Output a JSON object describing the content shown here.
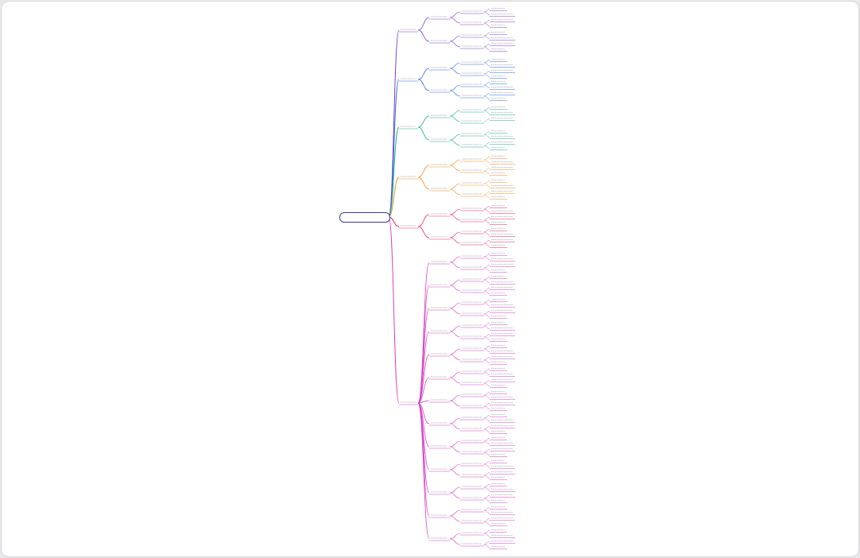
{
  "root": {
    "label": "",
    "color": "#3a3a9a"
  },
  "branches": [
    {
      "label": "",
      "color": "#7a3fd0",
      "level2": [
        {
          "label": "",
          "level3": [
            {
              "label": "",
              "leaves": [
                "",
                ""
              ]
            },
            {
              "label": "",
              "leaves": [
                "",
                ""
              ]
            }
          ]
        },
        {
          "label": "",
          "level3": [
            {
              "label": "",
              "leaves": [
                "",
                ""
              ]
            },
            {
              "label": "",
              "leaves": [
                "",
                ""
              ]
            }
          ]
        }
      ]
    },
    {
      "label": "",
      "color": "#2a6cd6",
      "level2": [
        {
          "label": "",
          "level3": [
            {
              "label": "",
              "leaves": [
                "",
                ""
              ]
            },
            {
              "label": "",
              "leaves": [
                "",
                ""
              ]
            }
          ]
        },
        {
          "label": "",
          "level3": [
            {
              "label": "",
              "leaves": [
                "",
                ""
              ]
            },
            {
              "label": "",
              "leaves": [
                "",
                ""
              ]
            }
          ]
        }
      ]
    },
    {
      "label": "",
      "color": "#1aa88a",
      "level2": [
        {
          "label": "",
          "level3": [
            {
              "label": "",
              "leaves": [
                "",
                ""
              ]
            },
            {
              "label": "",
              "leaves": [
                ""
              ]
            }
          ]
        },
        {
          "label": "",
          "level3": [
            {
              "label": "",
              "leaves": [
                "",
                ""
              ]
            },
            {
              "label": "",
              "leaves": [
                "",
                ""
              ]
            }
          ]
        }
      ]
    },
    {
      "label": "",
      "color": "#f08a1c",
      "level2": [
        {
          "label": "",
          "level3": [
            {
              "label": "",
              "leaves": [
                "",
                ""
              ]
            },
            {
              "label": "",
              "leaves": [
                "",
                ""
              ]
            }
          ]
        },
        {
          "label": "",
          "level3": [
            {
              "label": "",
              "leaves": [
                "",
                ""
              ]
            },
            {
              "label": "",
              "leaves": [
                "",
                ""
              ]
            }
          ]
        }
      ]
    },
    {
      "label": "",
      "color": "#e8225a",
      "level2": [
        {
          "label": "",
          "level3": [
            {
              "label": "",
              "leaves": [
                "",
                ""
              ]
            },
            {
              "label": "",
              "leaves": [
                "",
                ""
              ]
            }
          ]
        },
        {
          "label": "",
          "level3": [
            {
              "label": "",
              "leaves": [
                "",
                ""
              ]
            },
            {
              "label": "",
              "leaves": [
                "",
                ""
              ]
            }
          ]
        }
      ]
    },
    {
      "label": "",
      "color": "#d43fc4",
      "level2": [
        {
          "label": "",
          "level3": [
            {
              "label": "",
              "leaves": [
                "",
                ""
              ]
            },
            {
              "label": "",
              "leaves": [
                "",
                ""
              ]
            }
          ]
        },
        {
          "label": "",
          "level3": [
            {
              "label": "",
              "leaves": [
                "",
                ""
              ]
            },
            {
              "label": "",
              "leaves": [
                "",
                ""
              ]
            }
          ]
        },
        {
          "label": "",
          "level3": [
            {
              "label": "",
              "leaves": [
                "",
                ""
              ]
            },
            {
              "label": "",
              "leaves": [
                "",
                ""
              ]
            }
          ]
        },
        {
          "label": "",
          "level3": [
            {
              "label": "",
              "leaves": [
                "",
                ""
              ]
            },
            {
              "label": "",
              "leaves": [
                "",
                ""
              ]
            }
          ]
        },
        {
          "label": "",
          "level3": [
            {
              "label": "",
              "leaves": [
                "",
                ""
              ]
            },
            {
              "label": "",
              "leaves": [
                "",
                ""
              ]
            }
          ]
        },
        {
          "label": "",
          "level3": [
            {
              "label": "",
              "leaves": [
                "",
                ""
              ]
            },
            {
              "label": "",
              "leaves": [
                "",
                ""
              ]
            }
          ]
        },
        {
          "label": "",
          "level3": [
            {
              "label": "",
              "leaves": [
                "",
                ""
              ]
            },
            {
              "label": "",
              "leaves": [
                "",
                ""
              ]
            }
          ]
        },
        {
          "label": "",
          "level3": [
            {
              "label": "",
              "leaves": [
                "",
                ""
              ]
            },
            {
              "label": "",
              "leaves": [
                "",
                ""
              ]
            }
          ]
        },
        {
          "label": "",
          "level3": [
            {
              "label": "",
              "leaves": [
                "",
                ""
              ]
            },
            {
              "label": "",
              "leaves": [
                "",
                ""
              ]
            }
          ]
        },
        {
          "label": "",
          "level3": [
            {
              "label": "",
              "leaves": [
                "",
                ""
              ]
            },
            {
              "label": "",
              "leaves": [
                "",
                ""
              ]
            }
          ]
        },
        {
          "label": "",
          "level3": [
            {
              "label": "",
              "leaves": [
                "",
                ""
              ]
            },
            {
              "label": "",
              "leaves": [
                "",
                ""
              ]
            }
          ]
        },
        {
          "label": "",
          "level3": [
            {
              "label": "",
              "leaves": [
                "",
                ""
              ]
            },
            {
              "label": "",
              "leaves": [
                "",
                ""
              ]
            }
          ]
        },
        {
          "label": "",
          "level3": [
            {
              "label": "",
              "leaves": [
                "",
                ""
              ]
            },
            {
              "label": "",
              "leaves": [
                "",
                ""
              ]
            }
          ]
        }
      ]
    }
  ]
}
